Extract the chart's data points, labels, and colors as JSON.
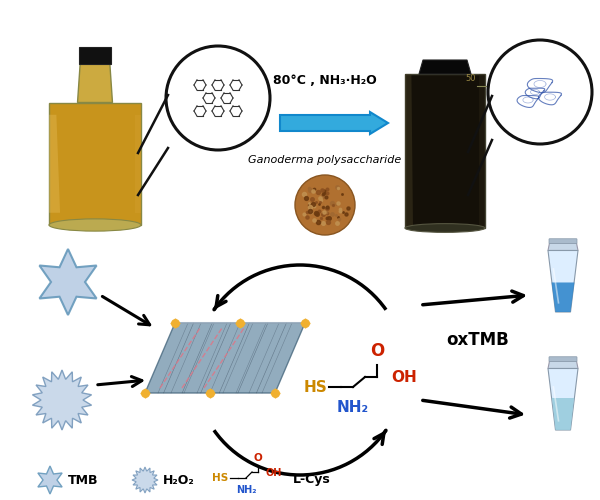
{
  "reaction_text_line1": "80°C , NH₃·H₂O",
  "polysaccharide_text": "Ganoderma polysaccharide",
  "oxTMB_text": "oxTMB",
  "bg_color": "#ffffff",
  "star_color_fill": "#b8cce4",
  "star_color_edge": "#6699bb",
  "spiky_color_fill": "#c5d5e8",
  "spiky_color_edge": "#7799bb",
  "sheet_color": "#7a9ab0",
  "sheet_grid": "#445566",
  "dot_gold": "#f0b030",
  "dot_pink": "#dd6677",
  "arrow_blue_fill": "#33aadd",
  "arrow_blue_edge": "#1188cc",
  "bottle_left_body": "#b8922a",
  "bottle_left_glass": "#e8d090",
  "bottle_right_body": "#1a1208",
  "bottle_right_glass": "#555040",
  "cap_color": "#111111",
  "tube_cap": "#c8d8e8",
  "tube_body": "#ddeef8",
  "tube_blue_liq": "#3388cc",
  "tube_pale_liq": "#99ccdd",
  "lcys_hs": "#cc8800",
  "lcys_o": "#cc2200",
  "lcys_oh": "#cc2200",
  "lcys_nh2": "#2255cc",
  "black": "#000000"
}
